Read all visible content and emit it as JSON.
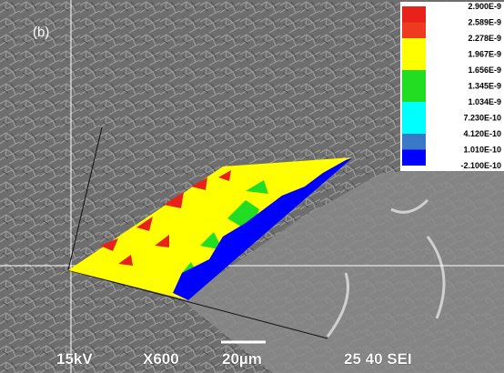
{
  "panel_label": "(b)",
  "legend": {
    "labels": [
      "2.900E-9",
      "2.589E-9",
      "2.278E-9",
      "1.967E-9",
      "1.656E-9",
      "1.345E-9",
      "1.034E-9",
      "7.230E-10",
      "4.120E-10",
      "1.010E-10",
      "-2.100E-10"
    ],
    "colors": [
      "#e8221a",
      "#ee3a1e",
      "#ffff00",
      "#ffff00",
      "#22dd22",
      "#22dd22",
      "#00ffff",
      "#00ffff",
      "#3a78c8",
      "#0000ff"
    ]
  },
  "info_bar": {
    "voltage": "15kV",
    "magnification": "X600",
    "scale": "20µm",
    "details": "25 40 SEI"
  }
}
